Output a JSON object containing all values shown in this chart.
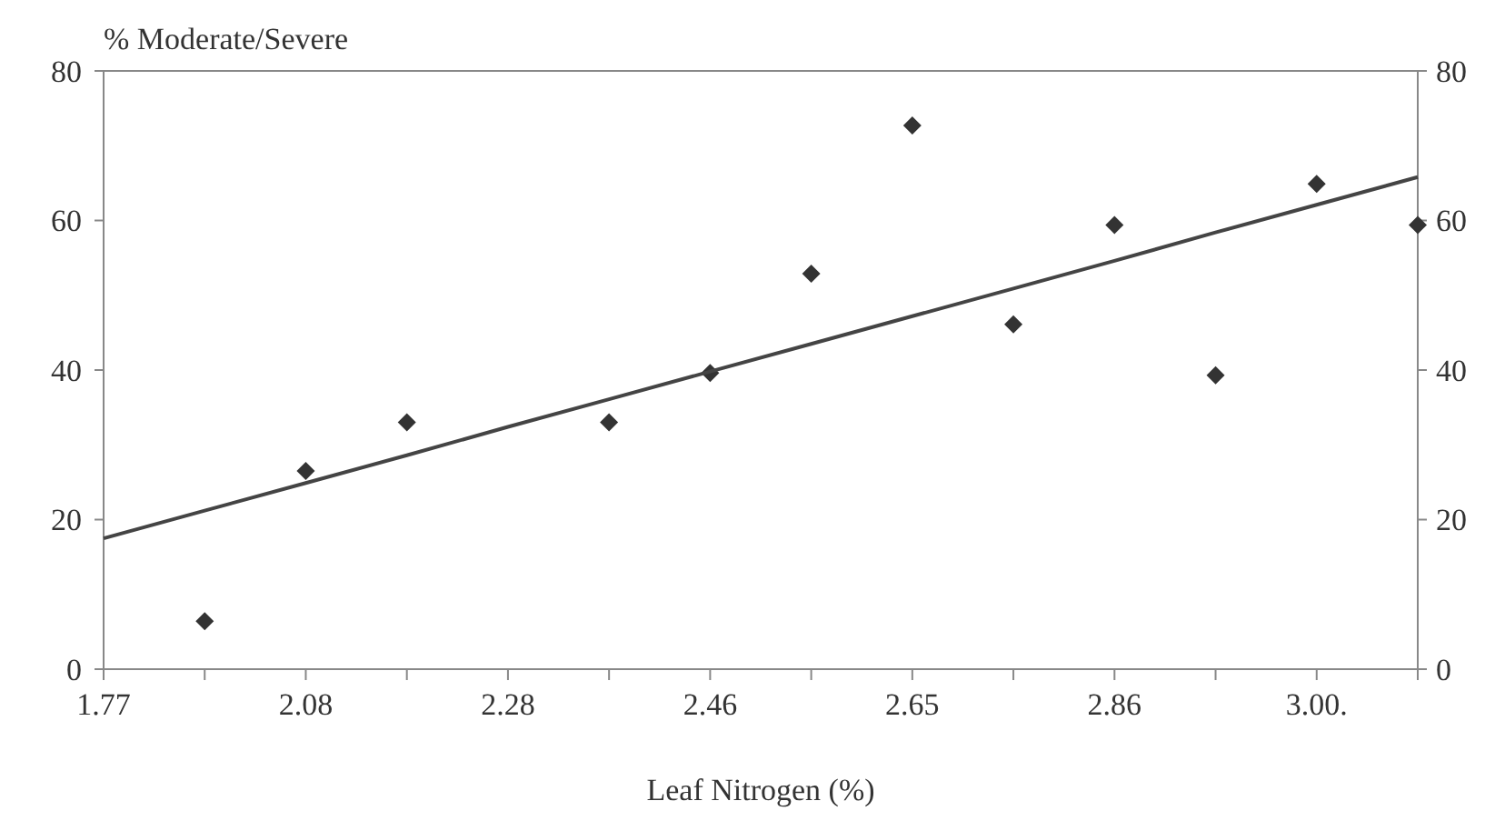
{
  "chart_data": {
    "type": "scatter",
    "ylabel": "% Moderate/Severe",
    "xlabel": "Leaf Nitrogen (%)",
    "categories": [
      "1.77",
      null,
      "2.08",
      null,
      "2.28",
      null,
      "2.46",
      null,
      "2.65",
      null,
      "2.86",
      null,
      "3.00.",
      null
    ],
    "series": [
      {
        "color": "#333333",
        "marker": "diamond",
        "values": [
          null,
          6.4,
          26.5,
          33,
          null,
          33,
          39.6,
          52.9,
          72.7,
          46.1,
          59.4,
          39.3,
          64.9,
          59.4
        ]
      },
      {
        "type": "line",
        "color": "#444444",
        "line_style": "solid",
        "values": [
          17.5,
          21.2,
          24.9,
          28.6,
          32.4,
          36.1,
          39.8,
          43.5,
          47.2,
          50.9,
          54.6,
          58.4,
          62.1,
          65.8
        ]
      }
    ],
    "ylim": [
      0,
      80
    ],
    "yticks": [
      0,
      20,
      40,
      60,
      80
    ],
    "y2lim": [
      0,
      80
    ],
    "y2ticks": [
      0,
      20,
      40,
      60,
      80
    ],
    "grid": false
  }
}
